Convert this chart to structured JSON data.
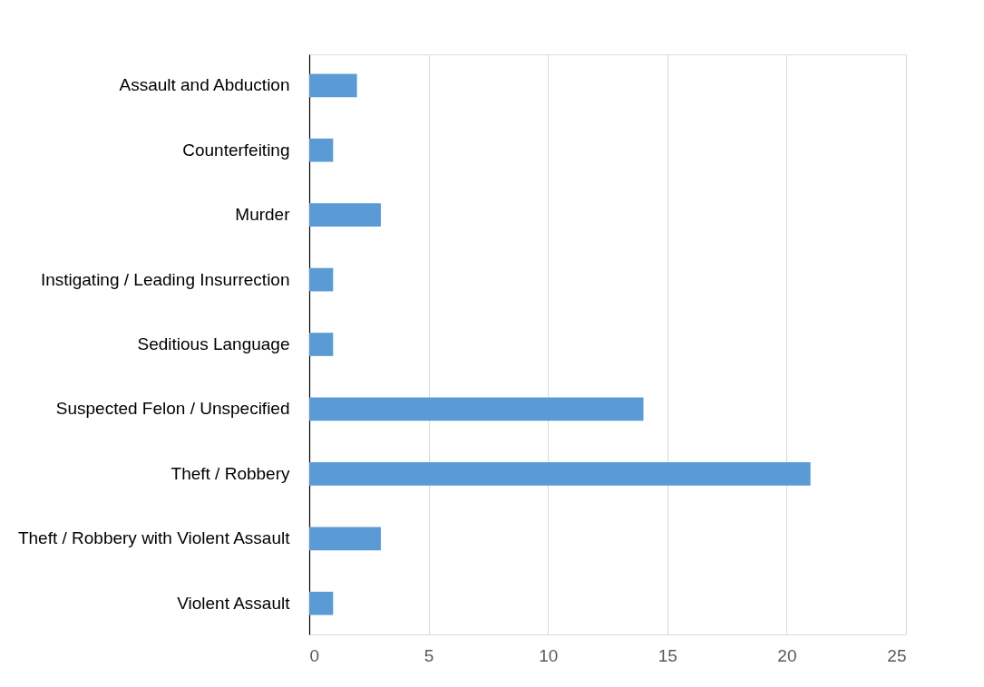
{
  "chart_data": {
    "type": "bar",
    "orientation": "horizontal",
    "categories": [
      "Assault and Abduction",
      "Counterfeiting",
      "Murder",
      "Instigating / Leading Insurrection",
      "Seditious Language",
      "Suspected Felon / Unspecified",
      "Theft / Robbery",
      "Theft / Robbery with Violent Assault",
      "Violent Assault"
    ],
    "values": [
      2,
      1,
      3,
      1,
      1,
      14,
      21,
      3,
      1
    ],
    "color": "#5b9bd5",
    "xlim": [
      0,
      25
    ],
    "xticks": [
      0,
      5,
      10,
      15,
      20,
      25
    ],
    "grid": "x"
  }
}
